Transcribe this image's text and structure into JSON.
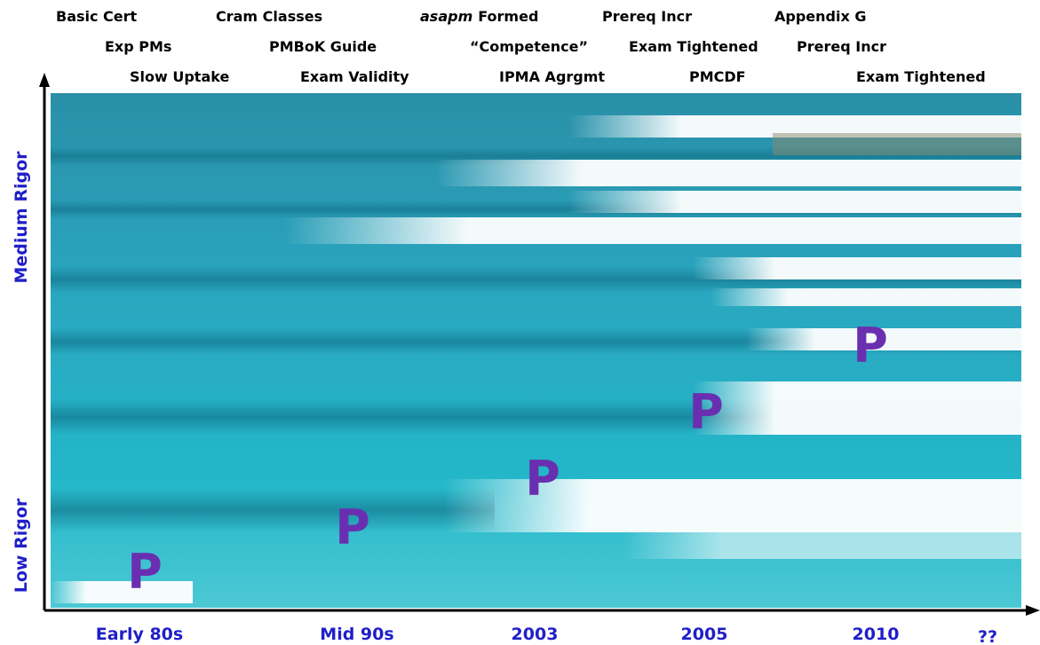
{
  "top_labels": [
    [
      "Basic Cert",
      "Cram Classes",
      {
        "italic": "asapm",
        "text": "Formed"
      },
      "Prereq Incr",
      "Appendix G"
    ],
    [
      "Exp PMs",
      "PMBoK Guide",
      "“Competence”",
      "Exam Tightened",
      "Prereq Incr"
    ],
    [
      "Slow Uptake",
      "Exam Validity",
      "IPMA Agrgmt",
      "PMCDF",
      "Exam Tightened"
    ]
  ],
  "y_axis": {
    "high": "Medium Rigor",
    "low": "Low Rigor"
  },
  "x_axis": [
    "Early 80s",
    "Mid 90s",
    "2003",
    "2005",
    "2010",
    "??"
  ],
  "markers": [
    "P",
    "P",
    "P",
    "P",
    "P"
  ]
}
